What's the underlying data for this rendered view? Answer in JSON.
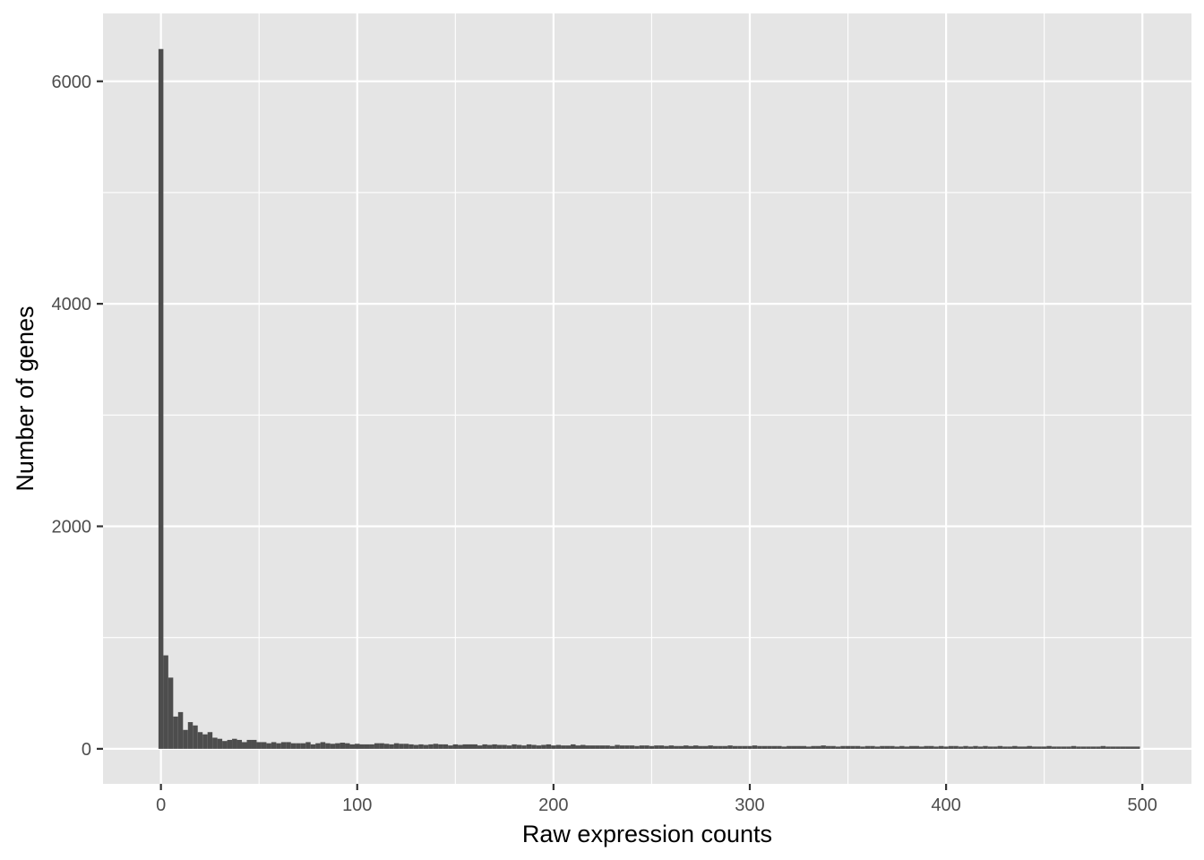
{
  "chart_data": {
    "type": "bar",
    "subtype": "histogram",
    "title": "",
    "xlabel": "Raw expression counts",
    "ylabel": "Number of genes",
    "xlim": [
      -29.5,
      525
    ],
    "ylim": [
      -315,
      6610
    ],
    "x_ticks": [
      0,
      100,
      200,
      300,
      400,
      500
    ],
    "x_tick_labels": [
      "0",
      "100",
      "200",
      "300",
      "400",
      "500"
    ],
    "y_ticks": [
      0,
      2000,
      4000,
      6000
    ],
    "y_tick_labels": [
      "0",
      "2000",
      "4000",
      "6000"
    ],
    "grid": true,
    "panel_background": "#e5e5e5",
    "grid_color": "#ffffff",
    "bar_color": "#4d4d4d",
    "bin_width": 2.5,
    "bin_start": -1.25,
    "values": [
      6290,
      840,
      640,
      290,
      330,
      170,
      240,
      210,
      150,
      130,
      150,
      100,
      90,
      70,
      80,
      90,
      80,
      60,
      80,
      80,
      60,
      60,
      50,
      60,
      50,
      60,
      60,
      50,
      50,
      50,
      60,
      40,
      50,
      60,
      50,
      45,
      50,
      55,
      50,
      40,
      45,
      40,
      40,
      40,
      50,
      50,
      45,
      40,
      50,
      45,
      45,
      40,
      35,
      40,
      35,
      40,
      45,
      40,
      40,
      30,
      40,
      35,
      40,
      40,
      40,
      30,
      40,
      35,
      40,
      35,
      35,
      30,
      40,
      35,
      30,
      40,
      35,
      30,
      35,
      40,
      30,
      35,
      30,
      30,
      40,
      30,
      35,
      30,
      30,
      30,
      30,
      30,
      25,
      35,
      30,
      30,
      30,
      25,
      30,
      30,
      25,
      30,
      30,
      25,
      30,
      25,
      25,
      30,
      25,
      30,
      25,
      25,
      30,
      25,
      25,
      25,
      30,
      25,
      25,
      25,
      25,
      30,
      25,
      25,
      25,
      25,
      25,
      20,
      25,
      25,
      25,
      25,
      20,
      25,
      25,
      30,
      25,
      25,
      20,
      25,
      25,
      25,
      25,
      20,
      25,
      25,
      20,
      25,
      25,
      25,
      20,
      25,
      20,
      25,
      25,
      20,
      25,
      25,
      20,
      25,
      20,
      25,
      25,
      20,
      25,
      20,
      25,
      20,
      25,
      20,
      20,
      25,
      20,
      20,
      25,
      20,
      20,
      25,
      20,
      20,
      20,
      25,
      20,
      20,
      20,
      20,
      25,
      20,
      20,
      20,
      20,
      20,
      25,
      20,
      20,
      20,
      20,
      20,
      20,
      20
    ]
  }
}
